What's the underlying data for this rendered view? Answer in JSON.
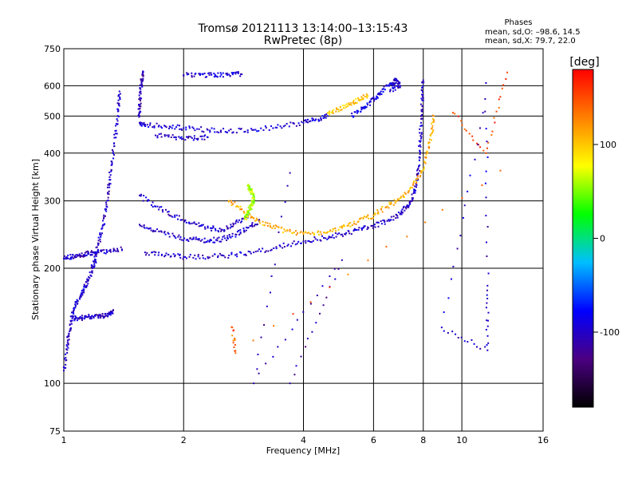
{
  "header": {
    "title": "Tromsø 20121113 13:14:00–13:15:43",
    "subtitle": "RwPretec (8p)"
  },
  "stats": {
    "heading": "Phases",
    "line_o": "mean, sd,O: –98.6, 14.5",
    "line_x": "mean, sd,X:  79.7, 22.0"
  },
  "chart_data": {
    "type": "scatter",
    "xlabel": "Frequency [MHz]",
    "ylabel": "Stationary phase Virtual Height [km]",
    "x_scale": "log",
    "y_scale": "log",
    "xlim": [
      1,
      16
    ],
    "ylim": [
      75,
      750
    ],
    "x_ticks": [
      1,
      2,
      4,
      6,
      8,
      10,
      16
    ],
    "y_ticks": [
      75,
      100,
      200,
      300,
      400,
      500,
      600,
      750
    ],
    "grid": true,
    "colorbar": {
      "label": "[deg]",
      "range": [
        -180,
        180
      ],
      "ticks": [
        100,
        0,
        -100
      ],
      "colors": [
        "#000000",
        "#4b0082",
        "#0000ff",
        "#00bfff",
        "#00ff00",
        "#ffff00",
        "#ff8000",
        "#ff0000"
      ]
    },
    "traces": [
      {
        "name": "",
        "phase": -100,
        "points": [
          [
            1.0,
            108
          ],
          [
            1.02,
            125
          ],
          [
            1.03,
            135
          ],
          [
            1.05,
            150
          ],
          [
            1.07,
            160
          ],
          [
            1.1,
            168
          ],
          [
            1.12,
            176
          ],
          [
            1.15,
            185
          ],
          [
            1.18,
            200
          ],
          [
            1.2,
            210
          ],
          [
            1.22,
            230
          ],
          [
            1.25,
            255
          ],
          [
            1.28,
            290
          ],
          [
            1.3,
            330
          ],
          [
            1.32,
            380
          ],
          [
            1.35,
            450
          ],
          [
            1.37,
            520
          ],
          [
            1.38,
            580
          ]
        ]
      },
      {
        "name": "",
        "phase": -100,
        "points": [
          [
            1.0,
            212
          ],
          [
            1.05,
            214
          ],
          [
            1.1,
            216
          ],
          [
            1.15,
            218
          ],
          [
            1.2,
            220
          ],
          [
            1.3,
            222
          ],
          [
            1.4,
            224
          ]
        ]
      },
      {
        "name": "",
        "phase": -100,
        "points": [
          [
            1.05,
            148
          ],
          [
            1.1,
            148
          ],
          [
            1.15,
            149
          ],
          [
            1.2,
            150
          ],
          [
            1.25,
            150
          ],
          [
            1.3,
            152
          ],
          [
            1.33,
            155
          ]
        ]
      },
      {
        "name": "",
        "phase": -100,
        "points": [
          [
            1.6,
            220
          ],
          [
            1.8,
            216
          ],
          [
            2.0,
            214
          ],
          [
            2.3,
            214
          ],
          [
            2.6,
            216
          ],
          [
            3.0,
            220
          ],
          [
            3.5,
            228
          ],
          [
            4.0,
            235
          ],
          [
            4.5,
            240
          ],
          [
            5.0,
            245
          ],
          [
            5.5,
            252
          ],
          [
            6.0,
            258
          ],
          [
            6.5,
            266
          ],
          [
            7.0,
            278
          ],
          [
            7.3,
            290
          ],
          [
            7.5,
            305
          ],
          [
            7.7,
            330
          ],
          [
            7.8,
            370
          ],
          [
            7.85,
            420
          ],
          [
            7.9,
            480
          ],
          [
            7.95,
            550
          ],
          [
            8.0,
            620
          ]
        ]
      },
      {
        "name": "",
        "phase": -100,
        "points": [
          [
            1.55,
            260
          ],
          [
            1.7,
            250
          ],
          [
            1.9,
            242
          ],
          [
            2.1,
            238
          ],
          [
            2.3,
            236
          ],
          [
            2.5,
            238
          ],
          [
            2.7,
            245
          ],
          [
            2.9,
            255
          ],
          [
            3.1,
            265
          ]
        ]
      },
      {
        "name": "",
        "phase": -100,
        "points": [
          [
            1.55,
            310
          ],
          [
            1.7,
            290
          ],
          [
            1.9,
            275
          ],
          [
            2.1,
            262
          ],
          [
            2.3,
            255
          ],
          [
            2.5,
            252
          ],
          [
            2.7,
            262
          ],
          [
            2.9,
            275
          ]
        ]
      },
      {
        "name": "",
        "phase": -95,
        "points": [
          [
            1.55,
            480
          ],
          [
            1.6,
            475
          ],
          [
            1.8,
            470
          ],
          [
            2.0,
            465
          ],
          [
            2.3,
            460
          ],
          [
            2.6,
            458
          ],
          [
            3.0,
            460
          ],
          [
            3.5,
            470
          ],
          [
            4.0,
            480
          ],
          [
            4.3,
            490
          ],
          [
            4.6,
            500
          ]
        ]
      },
      {
        "name": "",
        "phase": -100,
        "points": [
          [
            1.7,
            445
          ],
          [
            1.9,
            440
          ],
          [
            2.1,
            438
          ],
          [
            2.3,
            440
          ]
        ]
      },
      {
        "name": "",
        "phase": -95,
        "points": [
          [
            2.0,
            640
          ],
          [
            2.2,
            640
          ],
          [
            2.4,
            641
          ],
          [
            2.6,
            642
          ],
          [
            2.8,
            643
          ]
        ]
      },
      {
        "name": "",
        "phase": -110,
        "points": [
          [
            1.55,
            500
          ],
          [
            1.55,
            530
          ],
          [
            1.56,
            580
          ],
          [
            1.57,
            620
          ],
          [
            1.58,
            650
          ]
        ]
      },
      {
        "name": "",
        "phase": -90,
        "points": [
          [
            5.3,
            500
          ],
          [
            5.6,
            520
          ],
          [
            5.9,
            545
          ],
          [
            6.2,
            570
          ],
          [
            6.5,
            600
          ],
          [
            6.8,
            620
          ]
        ]
      },
      {
        "name": "",
        "phase": 110,
        "points": [
          [
            2.6,
            300
          ],
          [
            2.8,
            285
          ],
          [
            3.0,
            270
          ],
          [
            3.3,
            258
          ],
          [
            3.6,
            250
          ],
          [
            4.0,
            246
          ],
          [
            4.5,
            248
          ],
          [
            5.0,
            255
          ],
          [
            5.5,
            265
          ],
          [
            6.0,
            275
          ],
          [
            6.5,
            290
          ],
          [
            7.0,
            305
          ],
          [
            7.5,
            325
          ],
          [
            7.9,
            355
          ],
          [
            8.2,
            400
          ],
          [
            8.4,
            450
          ],
          [
            8.5,
            500
          ]
        ]
      },
      {
        "name": "",
        "phase": 60,
        "points": [
          [
            2.85,
            270
          ],
          [
            2.9,
            280
          ],
          [
            2.95,
            290
          ],
          [
            3.0,
            300
          ],
          [
            3.0,
            310
          ],
          [
            2.95,
            320
          ],
          [
            2.9,
            328
          ]
        ]
      },
      {
        "name": "",
        "phase": 100,
        "points": [
          [
            4.6,
            510
          ],
          [
            4.9,
            520
          ],
          [
            5.2,
            535
          ],
          [
            5.5,
            550
          ],
          [
            5.8,
            565
          ]
        ]
      },
      {
        "name": "",
        "phase": -100,
        "points": [
          [
            6.7,
            600
          ],
          [
            6.8,
            620
          ],
          [
            7.0,
            600
          ],
          [
            6.6,
            580
          ]
        ]
      },
      {
        "name": "",
        "phase": 150,
        "points": [
          [
            9.5,
            510
          ],
          [
            11.5,
            400
          ],
          [
            13.0,
            650
          ]
        ]
      },
      {
        "name": "",
        "phase": -100,
        "points": [
          [
            11.5,
            610
          ],
          [
            11.6,
            180
          ],
          [
            11.6,
            122
          ],
          [
            8.9,
            140
          ],
          [
            11.3,
            510
          ]
        ]
      },
      {
        "name": "",
        "phase": -110,
        "points": [
          [
            3.7,
            355
          ],
          [
            3.0,
            100
          ],
          [
            5.0,
            210
          ],
          [
            3.7,
            100
          ]
        ]
      },
      {
        "name": "",
        "phase": 140,
        "points": [
          [
            2.65,
            140
          ],
          [
            2.7,
            120
          ],
          [
            12.5,
            360
          ]
        ]
      }
    ]
  }
}
